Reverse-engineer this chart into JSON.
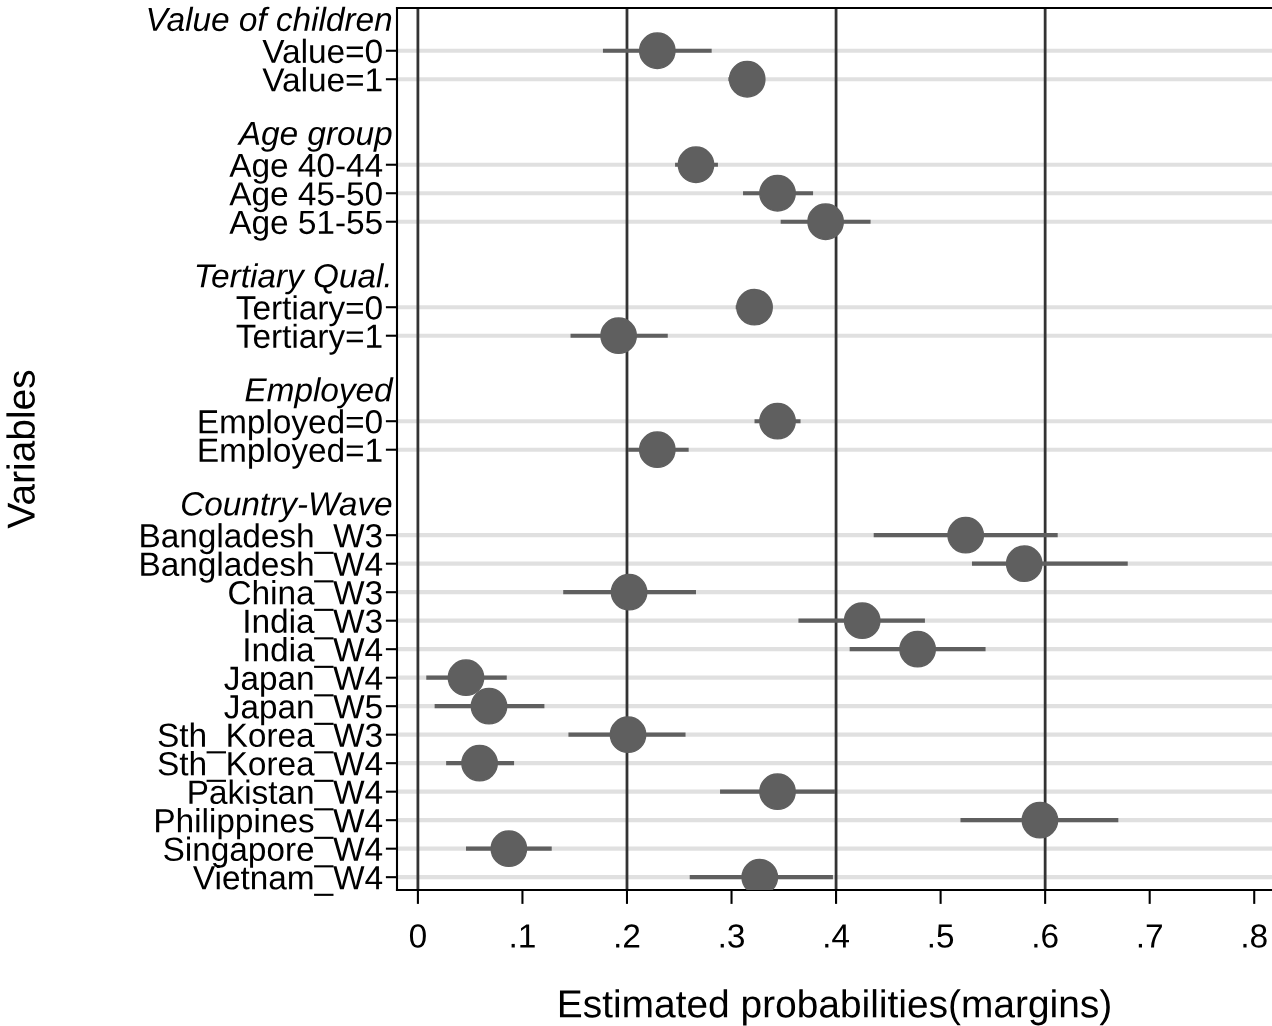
{
  "chart_data": {
    "type": "scatter",
    "orientation": "horizontal",
    "xlabel": "Estimated probabilities(margins)",
    "ylabel": "Variables",
    "categories": [
      "Value of children",
      "Value=0",
      "Value=1",
      null,
      "Age group",
      "Age 40-44",
      "Age 45-50",
      "Age 51-55",
      null,
      "Tertiary Qual.",
      "Tertiary=0",
      "Tertiary=1",
      null,
      "Employed",
      "Employed=0",
      "Employed=1",
      null,
      "Country-Wave",
      "Bangladesh_W3",
      "Bangladesh_W4",
      "China_W3",
      "India_W3",
      "India_W4",
      "Japan_W4",
      "Japan_W5",
      "Sth_Korea_W3",
      "Sth_Korea_W4",
      "Pakistan_W4",
      "Philippines_W4",
      "Singapore_W4",
      "Vietnam_W4"
    ],
    "series": [
      {
        "color": "#5f5f5f",
        "values": [
          null,
          0.229,
          0.315,
          null,
          null,
          0.266,
          0.344,
          0.39,
          null,
          null,
          0.322,
          0.192,
          null,
          null,
          0.344,
          0.229,
          null,
          null,
          0.524,
          0.58,
          0.202,
          0.425,
          0.478,
          0.046,
          0.068,
          0.201,
          0.059,
          0.344,
          0.595,
          0.087,
          0.327
        ],
        "errors": [
          null,
          [
            0.177,
            0.281
          ],
          [
            0.297,
            0.332
          ],
          null,
          null,
          [
            0.246,
            0.287
          ],
          [
            0.311,
            0.378
          ],
          [
            0.347,
            0.433
          ],
          null,
          null,
          [
            0.304,
            0.339
          ],
          [
            0.146,
            0.239
          ],
          null,
          null,
          [
            0.322,
            0.366
          ],
          [
            0.201,
            0.259
          ],
          null,
          null,
          [
            0.436,
            0.612
          ],
          [
            0.53,
            0.679
          ],
          [
            0.139,
            0.266
          ],
          [
            0.364,
            0.485
          ],
          [
            0.413,
            0.543
          ],
          [
            0.008,
            0.085
          ],
          [
            0.016,
            0.121
          ],
          [
            0.144,
            0.256
          ],
          [
            0.027,
            0.092
          ],
          [
            0.289,
            0.399
          ],
          [
            0.519,
            0.67
          ],
          [
            0.046,
            0.128
          ],
          [
            0.26,
            0.397
          ]
        ]
      }
    ],
    "xlim": [
      -0.02,
      0.817
    ],
    "xticks": [
      0,
      {
        "value": 0.1,
        "label": ".1"
      },
      {
        "value": 0.2,
        "label": ".2"
      },
      {
        "value": 0.3,
        "label": ".3"
      },
      {
        "value": 0.4,
        "label": ".4"
      },
      {
        "value": 0.5,
        "label": ".5"
      },
      {
        "value": 0.6,
        "label": ".6"
      },
      {
        "value": 0.7,
        "label": ".7"
      },
      {
        "value": 0.8,
        "label": ".8"
      }
    ],
    "ref_lines": [
      {
        "axis": "x",
        "value": 0,
        "color": "#333333"
      },
      {
        "axis": "x",
        "value": 0.2,
        "color": "#333333"
      },
      {
        "axis": "x",
        "value": 0.4,
        "color": "#333333"
      },
      {
        "axis": "x",
        "value": 0.6,
        "color": "#333333"
      }
    ],
    "grid": "y",
    "marker": "circle"
  }
}
